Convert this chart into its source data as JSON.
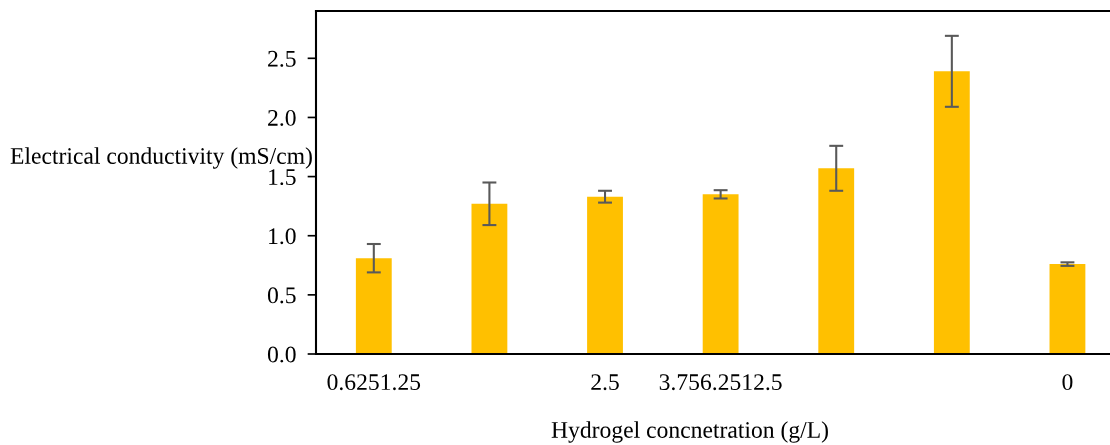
{
  "chart_data": {
    "type": "bar",
    "xlabel": "Hydrogel concnetration (g/L)",
    "ylabel": "Electrical conductivity (mS/cm)",
    "categories": [
      "0.6251.25",
      null,
      "2.5",
      "3.756.2512.5",
      null,
      null,
      "0"
    ],
    "values": [
      0.81,
      1.27,
      1.33,
      1.35,
      1.57,
      2.39,
      0.76
    ],
    "errors": [
      0.12,
      0.18,
      0.05,
      0.035,
      0.19,
      0.3,
      0.015
    ],
    "color": "#ffc000",
    "ylim": [
      0,
      2.9
    ],
    "yticks": [
      {
        "value": 0,
        "label": "0.0"
      },
      {
        "value": 0.5,
        "label": "0.5"
      },
      {
        "value": 1,
        "label": "1.0"
      },
      {
        "value": 1.5,
        "label": "1.5"
      },
      {
        "value": 2,
        "label": "2.0"
      },
      {
        "value": 2.5,
        "label": "2.5"
      }
    ],
    "grid": false,
    "legend": false
  }
}
